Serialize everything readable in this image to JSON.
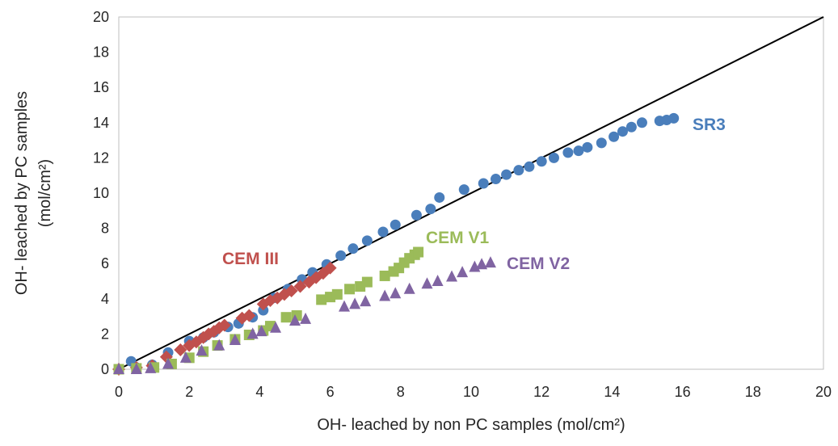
{
  "chart_data": {
    "type": "scatter",
    "title": "",
    "xlabel": "OH- leached by non PC samples (mol/cm²)",
    "ylabel_line1": "OH- leached by PC samples",
    "ylabel_line2": "(mol/cm²)",
    "xlim": [
      0,
      20
    ],
    "ylim": [
      0,
      20
    ],
    "xticks": [
      0,
      2,
      4,
      6,
      8,
      10,
      12,
      14,
      16,
      18,
      20
    ],
    "yticks": [
      0,
      2,
      4,
      6,
      8,
      10,
      12,
      14,
      16,
      18,
      20
    ],
    "grid": false,
    "legend": "none (series labelled directly)",
    "reference_line": {
      "from": [
        0,
        0
      ],
      "to": [
        20,
        20
      ],
      "color": "#000000"
    },
    "series": [
      {
        "name": "SR3",
        "label": "SR3",
        "color": "#4a7ebb",
        "marker": "circle",
        "points": [
          [
            0,
            0
          ],
          [
            0.35,
            0.45
          ],
          [
            0.5,
            0.1
          ],
          [
            0.95,
            0.25
          ],
          [
            1.4,
            0.95
          ],
          [
            2.0,
            1.6
          ],
          [
            2.4,
            1.8
          ],
          [
            2.7,
            2.1
          ],
          [
            3.1,
            2.4
          ],
          [
            3.4,
            2.6
          ],
          [
            3.8,
            2.95
          ],
          [
            4.1,
            3.35
          ],
          [
            4.4,
            4.05
          ],
          [
            4.8,
            4.55
          ],
          [
            5.2,
            5.1
          ],
          [
            5.5,
            5.5
          ],
          [
            5.9,
            5.95
          ],
          [
            6.3,
            6.45
          ],
          [
            6.65,
            6.85
          ],
          [
            7.05,
            7.3
          ],
          [
            7.5,
            7.8
          ],
          [
            7.85,
            8.2
          ],
          [
            8.45,
            8.75
          ],
          [
            8.85,
            9.1
          ],
          [
            9.1,
            9.75
          ],
          [
            9.8,
            10.2
          ],
          [
            10.35,
            10.55
          ],
          [
            10.7,
            10.8
          ],
          [
            11.0,
            11.05
          ],
          [
            11.35,
            11.3
          ],
          [
            11.65,
            11.5
          ],
          [
            12.0,
            11.8
          ],
          [
            12.35,
            12.0
          ],
          [
            12.75,
            12.3
          ],
          [
            13.05,
            12.4
          ],
          [
            13.3,
            12.6
          ],
          [
            13.7,
            12.85
          ],
          [
            14.05,
            13.2
          ],
          [
            14.3,
            13.5
          ],
          [
            14.55,
            13.75
          ],
          [
            14.85,
            14.0
          ],
          [
            15.35,
            14.1
          ],
          [
            15.55,
            14.15
          ],
          [
            15.75,
            14.25
          ]
        ]
      },
      {
        "name": "CEM III",
        "label": "CEM III",
        "color": "#c0504d",
        "marker": "diamond",
        "points": [
          [
            0,
            0
          ],
          [
            0.5,
            0.1
          ],
          [
            0.95,
            0.2
          ],
          [
            1.35,
            0.7
          ],
          [
            1.75,
            1.1
          ],
          [
            2.0,
            1.35
          ],
          [
            2.2,
            1.55
          ],
          [
            2.4,
            1.8
          ],
          [
            2.55,
            2.0
          ],
          [
            2.7,
            2.15
          ],
          [
            2.85,
            2.35
          ],
          [
            3.0,
            2.5
          ],
          [
            3.5,
            2.9
          ],
          [
            3.7,
            3.05
          ],
          [
            4.1,
            3.7
          ],
          [
            4.3,
            3.9
          ],
          [
            4.5,
            4.05
          ],
          [
            4.7,
            4.25
          ],
          [
            4.9,
            4.45
          ],
          [
            5.15,
            4.7
          ],
          [
            5.4,
            4.95
          ],
          [
            5.6,
            5.2
          ],
          [
            5.8,
            5.45
          ],
          [
            6.0,
            5.75
          ]
        ]
      },
      {
        "name": "CEM V1",
        "label": "CEM V1",
        "color": "#9bbb59",
        "marker": "square",
        "points": [
          [
            0,
            0
          ],
          [
            0.5,
            0.05
          ],
          [
            1.0,
            0.1
          ],
          [
            1.5,
            0.3
          ],
          [
            2.0,
            0.65
          ],
          [
            2.4,
            1.0
          ],
          [
            2.8,
            1.35
          ],
          [
            3.3,
            1.7
          ],
          [
            3.7,
            1.95
          ],
          [
            4.1,
            2.2
          ],
          [
            4.3,
            2.45
          ],
          [
            4.75,
            2.95
          ],
          [
            5.05,
            3.05
          ],
          [
            5.75,
            3.95
          ],
          [
            6.0,
            4.1
          ],
          [
            6.2,
            4.25
          ],
          [
            6.55,
            4.55
          ],
          [
            6.85,
            4.7
          ],
          [
            7.05,
            4.95
          ],
          [
            7.55,
            5.3
          ],
          [
            7.8,
            5.55
          ],
          [
            7.95,
            5.75
          ],
          [
            8.1,
            6.05
          ],
          [
            8.25,
            6.3
          ],
          [
            8.4,
            6.5
          ],
          [
            8.5,
            6.65
          ]
        ]
      },
      {
        "name": "CEM V2",
        "label": "CEM V2",
        "color": "#8064a2",
        "marker": "triangle",
        "points": [
          [
            0,
            0
          ],
          [
            0.5,
            0.0
          ],
          [
            0.9,
            0.05
          ],
          [
            1.4,
            0.3
          ],
          [
            1.9,
            0.65
          ],
          [
            2.35,
            1.05
          ],
          [
            2.85,
            1.35
          ],
          [
            3.3,
            1.65
          ],
          [
            3.8,
            2.0
          ],
          [
            4.05,
            2.15
          ],
          [
            4.45,
            2.35
          ],
          [
            5.0,
            2.75
          ],
          [
            5.3,
            2.85
          ],
          [
            6.4,
            3.55
          ],
          [
            6.7,
            3.7
          ],
          [
            7.0,
            3.85
          ],
          [
            7.55,
            4.15
          ],
          [
            7.85,
            4.3
          ],
          [
            8.25,
            4.55
          ],
          [
            8.75,
            4.85
          ],
          [
            9.05,
            5.0
          ],
          [
            9.45,
            5.25
          ],
          [
            9.75,
            5.5
          ],
          [
            10.1,
            5.8
          ],
          [
            10.3,
            5.95
          ],
          [
            10.55,
            6.05
          ]
        ]
      }
    ]
  }
}
